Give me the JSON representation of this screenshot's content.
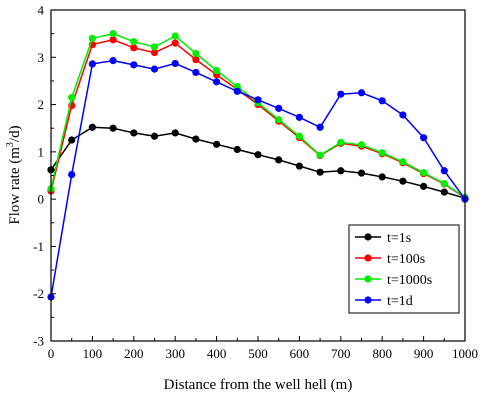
{
  "chart_data": {
    "type": "line",
    "xlabel": "Distance from the well hell (m)",
    "ylabel_main": "Flow rate (m",
    "ylabel_sup": "3",
    "ylabel_end": "/d)",
    "xlim": [
      0,
      1000
    ],
    "ylim": [
      -3,
      4
    ],
    "xticks": [
      "0",
      "100",
      "200",
      "300",
      "400",
      "500",
      "600",
      "700",
      "800",
      "900",
      "1000"
    ],
    "yticks": [
      "-3",
      "-2",
      "-1",
      "0",
      "1",
      "2",
      "3",
      "4"
    ],
    "grid": false,
    "legend_position": "lower-right",
    "x": [
      0,
      50,
      100,
      150,
      200,
      250,
      300,
      350,
      400,
      450,
      500,
      550,
      600,
      650,
      700,
      750,
      800,
      850,
      900,
      950,
      1000
    ],
    "series": [
      {
        "name": "t=1s",
        "color": "#000000",
        "values": [
          0.62,
          1.25,
          1.52,
          1.5,
          1.4,
          1.33,
          1.4,
          1.27,
          1.16,
          1.05,
          0.94,
          0.83,
          0.7,
          0.57,
          0.6,
          0.55,
          0.47,
          0.38,
          0.27,
          0.15,
          0.02
        ]
      },
      {
        "name": "t=100s",
        "color": "#ff0000",
        "values": [
          0.17,
          1.98,
          3.27,
          3.37,
          3.2,
          3.1,
          3.3,
          2.95,
          2.63,
          2.32,
          2.0,
          1.65,
          1.3,
          0.92,
          1.18,
          1.12,
          0.96,
          0.77,
          0.54,
          0.32,
          0.03
        ]
      },
      {
        "name": "t=1000s",
        "color": "#00ee00",
        "values": [
          0.22,
          2.15,
          3.4,
          3.5,
          3.33,
          3.22,
          3.45,
          3.08,
          2.72,
          2.38,
          2.04,
          1.68,
          1.33,
          0.93,
          1.2,
          1.15,
          0.98,
          0.79,
          0.56,
          0.33,
          0.04
        ]
      },
      {
        "name": "t=1d",
        "color": "#0000ff",
        "values": [
          -2.07,
          0.52,
          2.86,
          2.93,
          2.84,
          2.75,
          2.87,
          2.68,
          2.48,
          2.28,
          2.1,
          1.92,
          1.73,
          1.52,
          2.22,
          2.25,
          2.08,
          1.78,
          1.3,
          0.6,
          0.0
        ]
      }
    ]
  }
}
